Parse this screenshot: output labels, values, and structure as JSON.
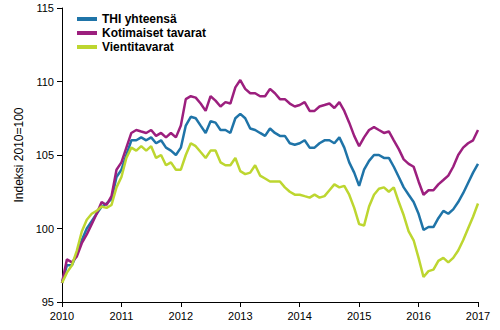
{
  "chart_data": {
    "type": "line",
    "y_label": "Indeksi 2010=100",
    "x": [
      2010,
      2010.083,
      2010.167,
      2010.25,
      2010.333,
      2010.417,
      2010.5,
      2010.583,
      2010.667,
      2010.75,
      2010.833,
      2010.917,
      2011,
      2011.083,
      2011.167,
      2011.25,
      2011.333,
      2011.417,
      2011.5,
      2011.583,
      2011.667,
      2011.75,
      2011.833,
      2011.917,
      2012,
      2012.083,
      2012.167,
      2012.25,
      2012.333,
      2012.417,
      2012.5,
      2012.583,
      2012.667,
      2012.75,
      2012.833,
      2012.917,
      2013,
      2013.083,
      2013.167,
      2013.25,
      2013.333,
      2013.417,
      2013.5,
      2013.583,
      2013.667,
      2013.75,
      2013.833,
      2013.917,
      2014,
      2014.083,
      2014.167,
      2014.25,
      2014.333,
      2014.417,
      2014.5,
      2014.583,
      2014.667,
      2014.75,
      2014.833,
      2014.917,
      2015,
      2015.083,
      2015.167,
      2015.25,
      2015.333,
      2015.417,
      2015.5,
      2015.583,
      2015.667,
      2015.75,
      2015.833,
      2015.917,
      2016,
      2016.083,
      2016.167,
      2016.25,
      2016.333,
      2016.417,
      2016.5,
      2016.583,
      2016.667,
      2016.75,
      2016.833,
      2016.917,
      2017
    ],
    "series": [
      {
        "name": "THI yhteensä",
        "color": "#1f74a8",
        "values": [
          96.3,
          97.5,
          97.5,
          98.3,
          99.2,
          100,
          100.5,
          101,
          101.5,
          101.7,
          102,
          103.5,
          104,
          105,
          106,
          106,
          106.2,
          106,
          106.2,
          105.8,
          106,
          105.5,
          105.3,
          105,
          105.5,
          107,
          107.6,
          107.5,
          107,
          106.5,
          107.3,
          107.2,
          106.7,
          106.7,
          106.5,
          107.5,
          107.8,
          107.5,
          106.8,
          106.7,
          106.5,
          106.3,
          106.8,
          106.5,
          106.3,
          106.3,
          105.8,
          105.7,
          105.8,
          106,
          105.5,
          105.5,
          105.8,
          106,
          106,
          105.8,
          106.2,
          105.5,
          104.5,
          103.8,
          102.9,
          104,
          104.6,
          105,
          105,
          104.8,
          104.8,
          104.2,
          103.5,
          102.8,
          102.3,
          101.8,
          101,
          99.9,
          100.1,
          100.1,
          100.7,
          101.2,
          101,
          101.3,
          101.8,
          102.4,
          103.1,
          103.8,
          104.4
        ]
      },
      {
        "name": "Kotimaiset tavarat",
        "color": "#9c1f7e",
        "values": [
          96.3,
          97.9,
          97.7,
          98.1,
          99,
          99.6,
          100.3,
          101,
          101.8,
          101.6,
          102.2,
          104,
          104.5,
          105.5,
          106.5,
          106.7,
          106.6,
          106.5,
          106.7,
          106.3,
          106.5,
          106.2,
          106.5,
          106.2,
          107,
          108.8,
          109,
          108.9,
          108.5,
          108,
          109,
          108.7,
          108.3,
          108.6,
          108.5,
          109.6,
          110.1,
          109.5,
          109.2,
          109.2,
          109,
          109,
          109.5,
          109.2,
          108.8,
          108.8,
          108.5,
          108.3,
          108.4,
          108.6,
          108,
          108,
          108.3,
          108.4,
          108.5,
          108.2,
          108.6,
          108,
          107.2,
          106.3,
          105.6,
          106.2,
          106.7,
          106.9,
          106.7,
          106.5,
          106.6,
          106,
          105.4,
          104.7,
          104.4,
          104.2,
          103.2,
          102.3,
          102.6,
          102.6,
          103,
          103.3,
          103.6,
          104.2,
          105,
          105.5,
          105.8,
          106,
          106.7
        ]
      },
      {
        "name": "Vientitavarat",
        "color": "#bdd630",
        "values": [
          96.3,
          97,
          97.5,
          98.5,
          99.8,
          100.6,
          101,
          101.2,
          101.5,
          101.4,
          101.6,
          102.8,
          103.5,
          104.8,
          105.5,
          105.3,
          105.6,
          105.3,
          105.6,
          104.8,
          105,
          104.3,
          104.5,
          104,
          104,
          105,
          105.8,
          105.6,
          105.2,
          104.8,
          105.3,
          105.3,
          104.5,
          104.3,
          104.3,
          104.8,
          103.9,
          103.7,
          103.8,
          104.3,
          103.6,
          103.4,
          103.2,
          103.2,
          103.2,
          102.8,
          102.5,
          102.3,
          102.3,
          102.2,
          102.1,
          102.3,
          102.1,
          102.2,
          102.6,
          103,
          102.8,
          102.9,
          102.3,
          101.4,
          100.3,
          100.2,
          101.5,
          102.3,
          102.7,
          102.8,
          102.5,
          102.8,
          101.8,
          100.9,
          99.8,
          99.2,
          98,
          96.7,
          97.1,
          97.2,
          97.8,
          98,
          97.7,
          98,
          98.5,
          99.2,
          100,
          100.8,
          101.7
        ]
      }
    ],
    "xlim": [
      2010,
      2017
    ],
    "xticks": [
      2010,
      2011,
      2012,
      2013,
      2014,
      2015,
      2016,
      2017
    ],
    "ylim": [
      95,
      115
    ],
    "yticks": [
      95,
      100,
      105,
      110,
      115
    ],
    "grid": false,
    "legend": "top-left"
  }
}
